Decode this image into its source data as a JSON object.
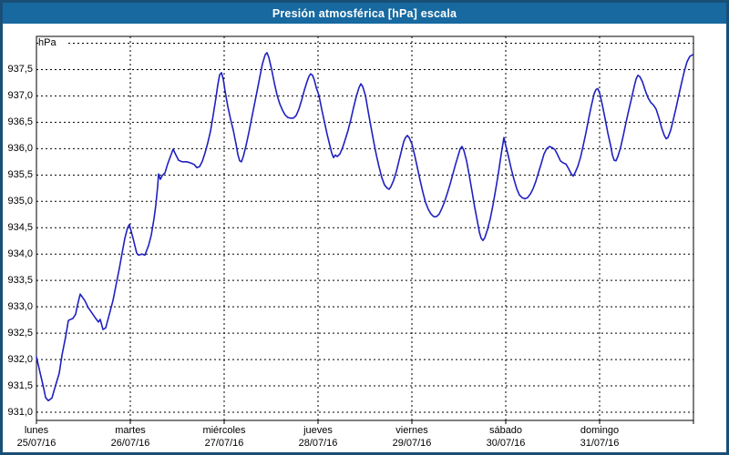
{
  "window": {
    "title": "Presión atmosférica [hPa] escala"
  },
  "colors": {
    "titlebar_bg": "#1769a0",
    "titlebar_text": "#ffffff",
    "window_border": "#194f76",
    "plot_border": "#000000",
    "grid": "#000000",
    "line": "#2020c0",
    "background": "#ffffff",
    "label_text": "#000000"
  },
  "chart_data": {
    "type": "line",
    "title": "Presión atmosférica [hPa] escala",
    "ylabel": "hPa",
    "xlabel": "",
    "ylim": [
      931.0,
      938.0
    ],
    "y_tick_step": 0.5,
    "grid": "dashed",
    "legend": "none",
    "y_ticks": [
      {
        "label": "937,5",
        "value": 937.5
      },
      {
        "label": "937,0",
        "value": 937.0
      },
      {
        "label": "936,5",
        "value": 936.5
      },
      {
        "label": "936,0",
        "value": 936.0
      },
      {
        "label": "935,5",
        "value": 935.5
      },
      {
        "label": "935,0",
        "value": 935.0
      },
      {
        "label": "934,5",
        "value": 934.5
      },
      {
        "label": "934,0",
        "value": 934.0
      },
      {
        "label": "933,5",
        "value": 933.5
      },
      {
        "label": "933,0",
        "value": 933.0
      },
      {
        "label": "932,5",
        "value": 932.5
      },
      {
        "label": "932,0",
        "value": 932.0
      },
      {
        "label": "931,5",
        "value": 931.5
      },
      {
        "label": "931,0",
        "value": 931.0
      }
    ],
    "x_categories": [
      {
        "name": "lunes",
        "date": "25/07/16"
      },
      {
        "name": "martes",
        "date": "26/07/16"
      },
      {
        "name": "miércoles",
        "date": "27/07/16"
      },
      {
        "name": "jueves",
        "date": "28/07/16"
      },
      {
        "name": "viernes",
        "date": "29/07/16"
      },
      {
        "name": "sábado",
        "date": "30/07/16"
      },
      {
        "name": "domingo",
        "date": "31/07/16"
      }
    ],
    "series": [
      {
        "name": "Presión atmosférica [hPa]",
        "points": [
          [
            0,
            932.05
          ],
          [
            0.039,
            931.75
          ],
          [
            0.078,
            931.45
          ],
          [
            0.097,
            931.28
          ],
          [
            0.126,
            931.22
          ],
          [
            0.165,
            931.27
          ],
          [
            0.194,
            931.45
          ],
          [
            0.243,
            931.74
          ],
          [
            0.272,
            932.08
          ],
          [
            0.311,
            932.43
          ],
          [
            0.34,
            932.74
          ],
          [
            0.388,
            932.78
          ],
          [
            0.417,
            932.86
          ],
          [
            0.437,
            933.03
          ],
          [
            0.466,
            933.24
          ],
          [
            0.515,
            933.12
          ],
          [
            0.553,
            932.98
          ],
          [
            0.592,
            932.88
          ],
          [
            0.631,
            932.78
          ],
          [
            0.66,
            932.71
          ],
          [
            0.68,
            932.76
          ],
          [
            0.709,
            932.57
          ],
          [
            0.738,
            932.6
          ],
          [
            0.777,
            932.86
          ],
          [
            0.816,
            933.12
          ],
          [
            0.854,
            933.47
          ],
          [
            0.883,
            933.72
          ],
          [
            0.913,
            934.02
          ],
          [
            0.942,
            934.3
          ],
          [
            0.971,
            934.5
          ],
          [
            0.99,
            934.56
          ],
          [
            1.029,
            934.3
          ],
          [
            1.068,
            934.02
          ],
          [
            1.087,
            933.98
          ],
          [
            1.126,
            934.0
          ],
          [
            1.155,
            933.98
          ],
          [
            1.194,
            934.16
          ],
          [
            1.223,
            934.36
          ],
          [
            1.252,
            934.67
          ],
          [
            1.272,
            934.93
          ],
          [
            1.291,
            935.28
          ],
          [
            1.301,
            935.52
          ],
          [
            1.32,
            935.42
          ],
          [
            1.34,
            935.49
          ],
          [
            1.369,
            935.54
          ],
          [
            1.398,
            935.71
          ],
          [
            1.427,
            935.85
          ],
          [
            1.456,
            935.99
          ],
          [
            1.485,
            935.88
          ],
          [
            1.515,
            935.78
          ],
          [
            1.553,
            935.75
          ],
          [
            1.602,
            935.75
          ],
          [
            1.641,
            935.73
          ],
          [
            1.68,
            935.7
          ],
          [
            1.709,
            935.64
          ],
          [
            1.738,
            935.66
          ],
          [
            1.767,
            935.76
          ],
          [
            1.796,
            935.92
          ],
          [
            1.825,
            936.11
          ],
          [
            1.854,
            936.33
          ],
          [
            1.883,
            936.63
          ],
          [
            1.913,
            936.97
          ],
          [
            1.932,
            937.21
          ],
          [
            1.951,
            937.4
          ],
          [
            1.971,
            937.44
          ],
          [
            1.99,
            937.32
          ],
          [
            2.01,
            937.09
          ],
          [
            2.039,
            936.8
          ],
          [
            2.068,
            936.56
          ],
          [
            2.097,
            936.35
          ],
          [
            2.126,
            936.09
          ],
          [
            2.146,
            935.89
          ],
          [
            2.165,
            935.77
          ],
          [
            2.184,
            935.75
          ],
          [
            2.204,
            935.85
          ],
          [
            2.233,
            936.06
          ],
          [
            2.262,
            936.3
          ],
          [
            2.291,
            936.56
          ],
          [
            2.32,
            936.82
          ],
          [
            2.35,
            937.09
          ],
          [
            2.379,
            937.35
          ],
          [
            2.408,
            937.61
          ],
          [
            2.437,
            937.78
          ],
          [
            2.456,
            937.82
          ],
          [
            2.476,
            937.73
          ],
          [
            2.505,
            937.51
          ],
          [
            2.534,
            937.25
          ],
          [
            2.563,
            937.02
          ],
          [
            2.592,
            936.85
          ],
          [
            2.621,
            936.73
          ],
          [
            2.65,
            936.64
          ],
          [
            2.68,
            936.59
          ],
          [
            2.709,
            936.58
          ],
          [
            2.738,
            936.58
          ],
          [
            2.767,
            936.63
          ],
          [
            2.796,
            936.75
          ],
          [
            2.825,
            936.92
          ],
          [
            2.854,
            937.11
          ],
          [
            2.883,
            937.27
          ],
          [
            2.903,
            937.37
          ],
          [
            2.922,
            937.42
          ],
          [
            2.942,
            937.39
          ],
          [
            2.961,
            937.3
          ],
          [
            2.981,
            937.16
          ],
          [
            3.01,
            937.01
          ],
          [
            3.039,
            936.75
          ],
          [
            3.068,
            936.51
          ],
          [
            3.097,
            936.27
          ],
          [
            3.126,
            936.06
          ],
          [
            3.146,
            935.92
          ],
          [
            3.165,
            935.83
          ],
          [
            3.184,
            935.88
          ],
          [
            3.204,
            935.85
          ],
          [
            3.233,
            935.9
          ],
          [
            3.262,
            936.02
          ],
          [
            3.291,
            936.18
          ],
          [
            3.32,
            936.35
          ],
          [
            3.35,
            936.56
          ],
          [
            3.379,
            936.78
          ],
          [
            3.408,
            936.99
          ],
          [
            3.437,
            937.16
          ],
          [
            3.456,
            937.23
          ],
          [
            3.476,
            937.18
          ],
          [
            3.505,
            937.01
          ],
          [
            3.534,
            936.71
          ],
          [
            3.563,
            936.42
          ],
          [
            3.592,
            936.14
          ],
          [
            3.621,
            935.88
          ],
          [
            3.65,
            935.66
          ],
          [
            3.68,
            935.45
          ],
          [
            3.709,
            935.31
          ],
          [
            3.738,
            935.25
          ],
          [
            3.757,
            935.23
          ],
          [
            3.777,
            935.28
          ],
          [
            3.806,
            935.4
          ],
          [
            3.835,
            935.57
          ],
          [
            3.864,
            935.78
          ],
          [
            3.893,
            935.99
          ],
          [
            3.913,
            936.13
          ],
          [
            3.932,
            936.21
          ],
          [
            3.951,
            936.25
          ],
          [
            3.971,
            936.21
          ],
          [
            4.0,
            936.09
          ],
          [
            4.029,
            935.88
          ],
          [
            4.058,
            935.64
          ],
          [
            4.087,
            935.4
          ],
          [
            4.117,
            935.17
          ],
          [
            4.146,
            934.98
          ],
          [
            4.175,
            934.85
          ],
          [
            4.204,
            934.76
          ],
          [
            4.233,
            934.71
          ],
          [
            4.262,
            934.71
          ],
          [
            4.291,
            934.76
          ],
          [
            4.32,
            934.87
          ],
          [
            4.35,
            935.0
          ],
          [
            4.379,
            935.16
          ],
          [
            4.408,
            935.33
          ],
          [
            4.437,
            935.52
          ],
          [
            4.466,
            935.71
          ],
          [
            4.495,
            935.88
          ],
          [
            4.515,
            936.0
          ],
          [
            4.534,
            936.04
          ],
          [
            4.553,
            935.97
          ],
          [
            4.583,
            935.77
          ],
          [
            4.612,
            935.49
          ],
          [
            4.641,
            935.19
          ],
          [
            4.67,
            934.88
          ],
          [
            4.699,
            934.61
          ],
          [
            4.718,
            934.42
          ],
          [
            4.738,
            934.3
          ],
          [
            4.757,
            934.26
          ],
          [
            4.777,
            934.31
          ],
          [
            4.806,
            934.47
          ],
          [
            4.835,
            934.67
          ],
          [
            4.864,
            934.93
          ],
          [
            4.893,
            935.23
          ],
          [
            4.922,
            935.54
          ],
          [
            4.942,
            935.78
          ],
          [
            4.961,
            936.0
          ],
          [
            4.981,
            936.21
          ],
          [
            5.0,
            936.06
          ],
          [
            5.029,
            935.85
          ],
          [
            5.058,
            935.62
          ],
          [
            5.087,
            935.42
          ],
          [
            5.117,
            935.24
          ],
          [
            5.146,
            935.12
          ],
          [
            5.175,
            935.07
          ],
          [
            5.204,
            935.05
          ],
          [
            5.233,
            935.07
          ],
          [
            5.262,
            935.14
          ],
          [
            5.291,
            935.24
          ],
          [
            5.32,
            935.38
          ],
          [
            5.35,
            935.55
          ],
          [
            5.379,
            935.72
          ],
          [
            5.408,
            935.9
          ],
          [
            5.437,
            936.0
          ],
          [
            5.466,
            936.04
          ],
          [
            5.495,
            936.02
          ],
          [
            5.524,
            935.98
          ],
          [
            5.553,
            935.88
          ],
          [
            5.583,
            935.77
          ],
          [
            5.612,
            935.73
          ],
          [
            5.641,
            935.71
          ],
          [
            5.67,
            935.62
          ],
          [
            5.699,
            935.52
          ],
          [
            5.718,
            935.48
          ],
          [
            5.738,
            935.54
          ],
          [
            5.767,
            935.66
          ],
          [
            5.796,
            935.83
          ],
          [
            5.825,
            936.06
          ],
          [
            5.854,
            936.3
          ],
          [
            5.883,
            936.56
          ],
          [
            5.913,
            936.82
          ],
          [
            5.942,
            937.04
          ],
          [
            5.961,
            937.12
          ],
          [
            5.981,
            937.14
          ],
          [
            6.0,
            937.06
          ],
          [
            6.029,
            936.83
          ],
          [
            6.058,
            936.57
          ],
          [
            6.087,
            936.3
          ],
          [
            6.117,
            936.06
          ],
          [
            6.136,
            935.88
          ],
          [
            6.155,
            935.78
          ],
          [
            6.175,
            935.77
          ],
          [
            6.194,
            935.85
          ],
          [
            6.223,
            936.02
          ],
          [
            6.252,
            936.25
          ],
          [
            6.281,
            936.49
          ],
          [
            6.311,
            936.73
          ],
          [
            6.34,
            936.95
          ],
          [
            6.369,
            937.18
          ],
          [
            6.388,
            937.32
          ],
          [
            6.408,
            937.39
          ],
          [
            6.427,
            937.37
          ],
          [
            6.456,
            937.27
          ],
          [
            6.485,
            937.11
          ],
          [
            6.515,
            936.97
          ],
          [
            6.544,
            936.88
          ],
          [
            6.573,
            936.83
          ],
          [
            6.602,
            936.75
          ],
          [
            6.631,
            936.59
          ],
          [
            6.66,
            936.4
          ],
          [
            6.689,
            936.25
          ],
          [
            6.709,
            936.19
          ],
          [
            6.728,
            936.21
          ],
          [
            6.757,
            936.35
          ],
          [
            6.786,
            936.56
          ],
          [
            6.816,
            936.78
          ],
          [
            6.845,
            937.02
          ],
          [
            6.874,
            937.25
          ],
          [
            6.903,
            937.47
          ],
          [
            6.932,
            937.65
          ],
          [
            6.961,
            937.75
          ],
          [
            6.99,
            937.78
          ]
        ]
      }
    ]
  }
}
